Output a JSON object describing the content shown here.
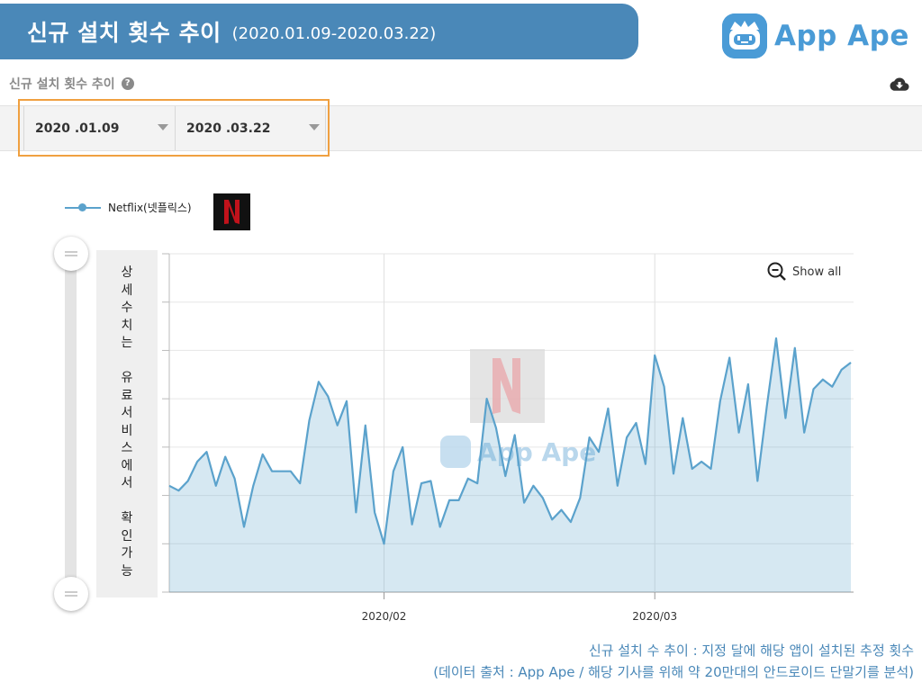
{
  "header": {
    "title": "신규 설치 횟수 추이",
    "date_range": "(2020.01.09-2020.03.22)"
  },
  "logo": {
    "text": "App Ape",
    "color": "#4a9bd6"
  },
  "section": {
    "title": "신규 설치 횟수 추이",
    "help_icon": "question-circle-icon",
    "download_icon": "cloud-download-icon"
  },
  "filters": {
    "start_date": "2020 .01.09",
    "end_date": "2020 .03.22"
  },
  "colors": {
    "banner": "#4a88b8",
    "series": "#5ba2cc",
    "highlight": "#f0a040",
    "netflix_red": "#c1121b"
  },
  "side_note": [
    "상",
    "세",
    "수",
    "치",
    "는",
    "",
    "유",
    "료",
    "서",
    "비",
    "스",
    "에",
    "서",
    "",
    "확",
    "인",
    "가",
    "능"
  ],
  "show_all": {
    "label": "Show all",
    "icon": "zoom-out-icon"
  },
  "footer": {
    "line1": "신규 설치 수 추이 : 지정 달에 해당 앱이 설치된 추정 횟수",
    "line2": "(데이터 출처 : App Ape / 해당 기사를 위해 약 20만대의 안드로이드 단말기를 분석)"
  },
  "chart_data": {
    "type": "area",
    "title": "",
    "xlabel": "",
    "ylabel": "",
    "x_ticks": [
      "2020/02",
      "2020/03"
    ],
    "y_tick_labels_visible": false,
    "ylim": [
      0,
      7
    ],
    "grid": true,
    "legend_position": "top-left",
    "series": [
      {
        "name": "Netflix(넷플릭스)",
        "color": "#5ba2cc",
        "x": [
          "2020-01-09",
          "2020-01-10",
          "2020-01-11",
          "2020-01-12",
          "2020-01-13",
          "2020-01-14",
          "2020-01-15",
          "2020-01-16",
          "2020-01-17",
          "2020-01-18",
          "2020-01-19",
          "2020-01-20",
          "2020-01-21",
          "2020-01-22",
          "2020-01-23",
          "2020-01-24",
          "2020-01-25",
          "2020-01-26",
          "2020-01-27",
          "2020-01-28",
          "2020-01-29",
          "2020-01-30",
          "2020-01-31",
          "2020-02-01",
          "2020-02-02",
          "2020-02-03",
          "2020-02-04",
          "2020-02-05",
          "2020-02-06",
          "2020-02-07",
          "2020-02-08",
          "2020-02-09",
          "2020-02-10",
          "2020-02-11",
          "2020-02-12",
          "2020-02-13",
          "2020-02-14",
          "2020-02-15",
          "2020-02-16",
          "2020-02-17",
          "2020-02-18",
          "2020-02-19",
          "2020-02-20",
          "2020-02-21",
          "2020-02-22",
          "2020-02-23",
          "2020-02-24",
          "2020-02-25",
          "2020-02-26",
          "2020-02-27",
          "2020-02-28",
          "2020-02-29",
          "2020-03-01",
          "2020-03-02",
          "2020-03-03",
          "2020-03-04",
          "2020-03-05",
          "2020-03-06",
          "2020-03-07",
          "2020-03-08",
          "2020-03-09",
          "2020-03-10",
          "2020-03-11",
          "2020-03-12",
          "2020-03-13",
          "2020-03-14",
          "2020-03-15",
          "2020-03-16",
          "2020-03-17",
          "2020-03-18",
          "2020-03-19",
          "2020-03-20",
          "2020-03-21",
          "2020-03-22"
        ],
        "values": [
          2.2,
          2.1,
          2.3,
          2.7,
          2.9,
          2.2,
          2.8,
          2.35,
          1.35,
          2.2,
          2.85,
          2.5,
          2.5,
          2.5,
          2.25,
          3.55,
          4.35,
          4.05,
          3.45,
          3.95,
          1.65,
          3.45,
          1.65,
          1.0,
          2.5,
          3.0,
          1.4,
          2.25,
          2.3,
          1.35,
          1.9,
          1.9,
          2.35,
          2.25,
          4.0,
          3.4,
          2.4,
          3.25,
          1.85,
          2.2,
          1.95,
          1.5,
          1.7,
          1.45,
          1.95,
          3.2,
          2.9,
          3.8,
          2.2,
          3.2,
          3.5,
          2.65,
          4.9,
          4.25,
          2.45,
          3.6,
          2.55,
          2.7,
          2.55,
          3.95,
          4.85,
          3.3,
          4.3,
          2.3,
          3.85,
          5.25,
          3.6,
          5.05,
          3.3,
          4.2,
          4.4,
          4.25,
          4.6,
          4.75
        ]
      }
    ]
  }
}
